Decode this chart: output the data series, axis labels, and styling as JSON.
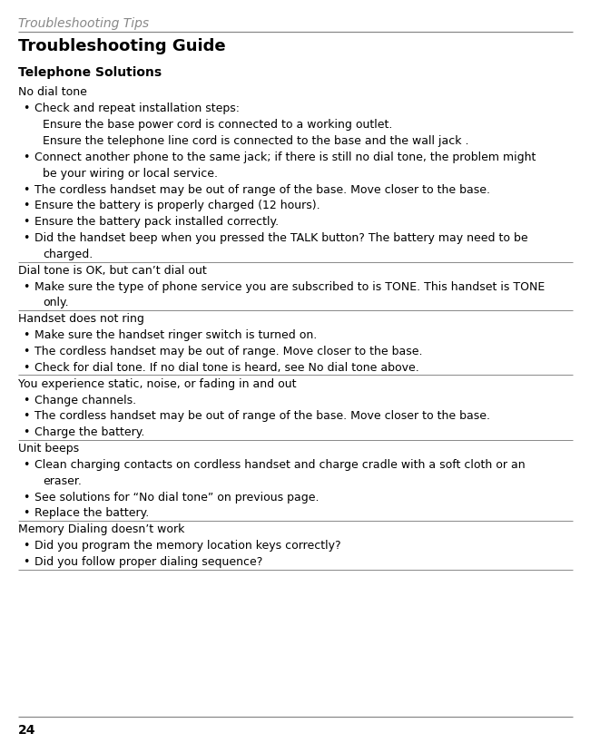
{
  "page_number": "24",
  "header_title": "Troubleshooting Tips",
  "main_title": "Troubleshooting Guide",
  "sections": [
    {
      "subtitle": "Telephone Solutions",
      "items": [
        {
          "type": "heading",
          "text": "No dial tone",
          "divider_above": false
        },
        {
          "type": "bullet",
          "text": "Check and repeat installation steps:",
          "lines": 1
        },
        {
          "type": "plain",
          "text": "Ensure the base power cord is connected to a working outlet.",
          "lines": 1
        },
        {
          "type": "plain",
          "text": "Ensure the telephone line cord is connected to the base and the wall jack .",
          "lines": 1
        },
        {
          "type": "bullet",
          "text": "Connect another phone to the same jack; if there is still no dial tone, the problem might",
          "cont": "be your wiring or local service.",
          "lines": 2
        },
        {
          "type": "bullet",
          "text": "The cordless handset may be out of range of the base. Move closer to the base.",
          "lines": 1
        },
        {
          "type": "bullet",
          "text": "Ensure the battery is properly charged (12 hours).",
          "lines": 1
        },
        {
          "type": "bullet",
          "text": "Ensure the battery pack installed correctly.",
          "lines": 1
        },
        {
          "type": "bullet",
          "text": "Did the handset beep when you pressed the TALK button? The battery may need to be",
          "cont": "charged.",
          "lines": 2,
          "divider_below": true
        },
        {
          "type": "heading",
          "text": "Dial tone is OK, but can’t dial out",
          "divider_above": false
        },
        {
          "type": "bullet",
          "text": "Make sure the type of phone service you are subscribed to is TONE. This handset is TONE",
          "cont": "only.",
          "lines": 2,
          "divider_below": true
        },
        {
          "type": "heading",
          "text": "Handset does not ring",
          "divider_above": false
        },
        {
          "type": "bullet",
          "text": "Make sure the handset ringer switch is turned on.",
          "lines": 1
        },
        {
          "type": "bullet",
          "text": "The cordless handset may be out of range. Move closer to the base.",
          "lines": 1
        },
        {
          "type": "bullet",
          "text": "Check for dial tone. If no dial tone is heard, see No dial tone above.",
          "lines": 1,
          "divider_below": true
        },
        {
          "type": "heading",
          "text": "You experience static, noise, or fading in and out",
          "divider_above": false
        },
        {
          "type": "bullet",
          "text": "Change channels.",
          "lines": 1
        },
        {
          "type": "bullet",
          "text": "The cordless handset may be out of range of the base. Move closer to the base.",
          "lines": 1
        },
        {
          "type": "bullet",
          "text": "Charge the battery.",
          "lines": 1,
          "divider_below": true
        },
        {
          "type": "heading",
          "text": "Unit beeps",
          "divider_above": false
        },
        {
          "type": "bullet",
          "text": "Clean charging contacts on cordless handset and charge cradle with a soft cloth or an",
          "cont": "eraser.",
          "lines": 2
        },
        {
          "type": "bullet",
          "text": "See solutions for “No dial tone” on previous page.",
          "lines": 1
        },
        {
          "type": "bullet",
          "text": "Replace the battery.",
          "lines": 1,
          "divider_below": true
        },
        {
          "type": "heading",
          "text": "Memory Dialing doesn’t work",
          "divider_above": false
        },
        {
          "type": "bullet",
          "text": "Did you program the memory location keys correctly?",
          "lines": 1
        },
        {
          "type": "bullet",
          "text": "Did you follow proper dialing sequence?",
          "lines": 1,
          "divider_below": true
        }
      ]
    }
  ],
  "bg_color": "#ffffff",
  "text_color": "#000000",
  "header_color": "#888888",
  "divider_color": "#888888",
  "font_family": "DejaVu Sans",
  "header_fontsize": 10,
  "title_fontsize": 13,
  "subtitle_fontsize": 10,
  "body_fontsize": 9
}
